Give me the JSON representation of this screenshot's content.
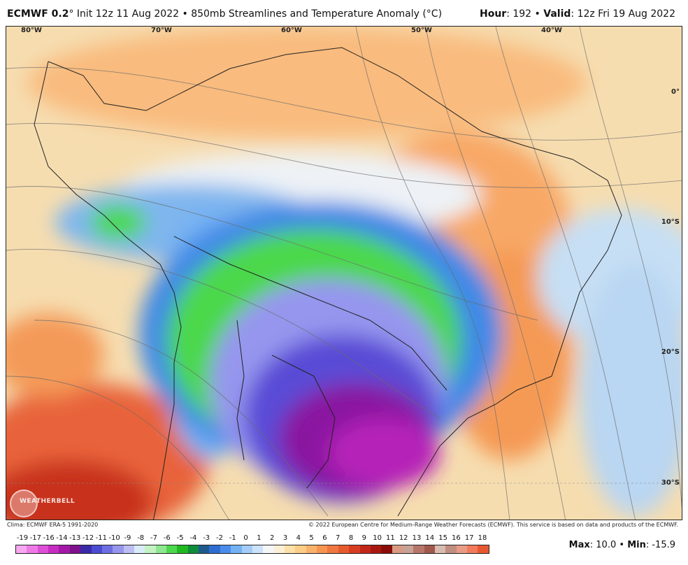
{
  "header": {
    "model": "ECMWF 0.2",
    "degree_symbol": "°",
    "init": "Init 12z 11 Aug 2022",
    "bullet": "•",
    "product": "850mb Streamlines and Temperature Anomaly (°C)",
    "hour_label": "Hour",
    "hour_value": ": 192",
    "valid_label": "Valid",
    "valid_value": ": 12z Fri 19 Aug 2022"
  },
  "map": {
    "lon_labels": [
      "80°W",
      "70°W",
      "60°W",
      "50°W",
      "40°W"
    ],
    "lat_labels": [
      "0°",
      "10°S",
      "20°S",
      "30°S"
    ],
    "watermark": "WEATHERBELL"
  },
  "footer": {
    "climo": "Clima: ECMWF ERA-5 1991-2020",
    "copyright": "© 2022 European Centre for Medium-Range Weather Forecasts (ECMWF). This service is based on data and products of the ECMWF."
  },
  "colorbar": {
    "labels": [
      "-19",
      "-17",
      "-16",
      "-14",
      "-13",
      "-12",
      "-11",
      "-10",
      "-9",
      "-8",
      "-7",
      "-6",
      "-5",
      "-4",
      "-3",
      "-2",
      "-1",
      "0",
      "1",
      "2",
      "3",
      "4",
      "5",
      "6",
      "7",
      "8",
      "9",
      "10",
      "11",
      "12",
      "13",
      "14",
      "15",
      "16",
      "17",
      "18"
    ],
    "colors": [
      "#f7a8f0",
      "#ee7ae6",
      "#de4fd8",
      "#c62cc2",
      "#a418a8",
      "#7e118c",
      "#3a2aa8",
      "#4b4bd1",
      "#6e6ee2",
      "#9696ee",
      "#bdbdf4",
      "#d9ecf9",
      "#c3f2c3",
      "#8fe88f",
      "#4cd84c",
      "#1fb81f",
      "#0f8c3a",
      "#1f5a8c",
      "#2f6cd0",
      "#4a8cec",
      "#74b1f4",
      "#a3cdf8",
      "#cde3fa",
      "#f4f6f8",
      "#fbefd6",
      "#fce0a8",
      "#fccd86",
      "#f9b26c",
      "#f69550",
      "#ef7740",
      "#e75a2e",
      "#d83d22",
      "#c22618",
      "#a8180f",
      "#8a0c08",
      "#d89a82",
      "#c8a296",
      "#b8766a",
      "#a0584c",
      "#d8bcb0",
      "#c08e80",
      "#e89c86",
      "#f27a5a",
      "#e85830"
    ],
    "title": "Temperature anomaly (°C)"
  },
  "stats": {
    "max_label": "Max",
    "max_value": ": 10.0",
    "bullet": "•",
    "min_label": "Min",
    "min_value": ": -15.9"
  }
}
